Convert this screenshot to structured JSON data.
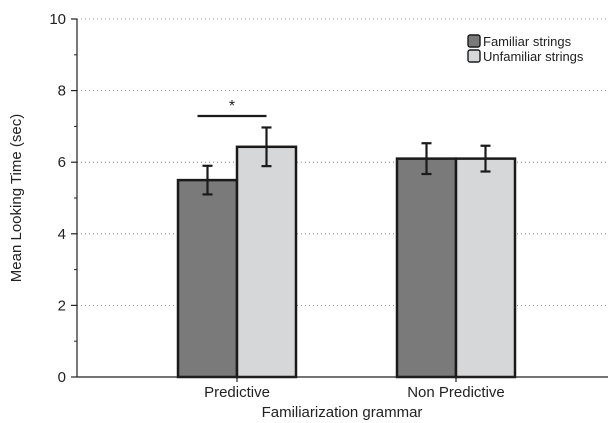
{
  "chart_data": {
    "type": "bar",
    "categories": [
      "Predictive",
      "Non Predictive"
    ],
    "series": [
      {
        "name": "Familiar strings",
        "values": [
          5.5,
          6.1
        ],
        "errors": [
          0.4,
          0.43
        ],
        "color": "#7a7a7a"
      },
      {
        "name": "Unfamiliar strings",
        "values": [
          6.43,
          6.1
        ],
        "errors": [
          0.54,
          0.36
        ],
        "color": "#d6d7d9"
      }
    ],
    "title": "",
    "xlabel": "Familiarization grammar",
    "ylabel": "Mean Looking Time (sec)",
    "ylim": [
      0,
      10
    ],
    "yticks": [
      "0",
      "2",
      "4",
      "6",
      "8",
      "10"
    ],
    "grid": "horizontal dotted",
    "legend_position": "top-right",
    "annotations": [
      {
        "text": "*",
        "between": [
          "Predictive: Familiar strings",
          "Predictive: Unfamiliar strings"
        ]
      }
    ]
  }
}
